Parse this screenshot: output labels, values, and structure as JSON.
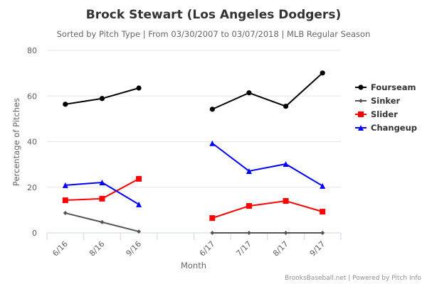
{
  "chart_data": {
    "type": "line",
    "title": "Brock Stewart (Los Angeles Dodgers)",
    "subtitle": "Sorted by Pitch Type | From 03/30/2007 to 03/07/2018 | MLB Regular Season",
    "xlabel": "Month",
    "ylabel": "Percentage of Pitches",
    "categories": [
      "6/16",
      "8/16",
      "9/16",
      "",
      "6/17",
      "7/17",
      "8/17",
      "9/17"
    ],
    "ylim": [
      0,
      80
    ],
    "yticks": [
      0,
      20,
      40,
      60,
      80
    ],
    "grid": true,
    "legend_position": "right",
    "series": [
      {
        "name": "Fourseam",
        "color": "#000000",
        "marker": "circle",
        "values": [
          56.4,
          58.9,
          63.5,
          null,
          54.2,
          61.4,
          55.5,
          70.1
        ]
      },
      {
        "name": "Sinker",
        "color": "#555555",
        "marker": "diamond",
        "values": [
          8.7,
          4.7,
          0.6,
          null,
          0.0,
          0.0,
          0.0,
          0.0
        ]
      },
      {
        "name": "Slider",
        "color": "#ff0000",
        "marker": "square",
        "values": [
          14.3,
          15.0,
          23.7,
          null,
          6.5,
          11.8,
          14.0,
          9.3
        ]
      },
      {
        "name": "Changeup",
        "color": "#0000ff",
        "marker": "triangle",
        "values": [
          20.9,
          22.1,
          12.5,
          null,
          39.3,
          27.1,
          30.2,
          20.6
        ]
      }
    ],
    "credits": "BrooksBaseball.net | Powered by Pitch Info"
  }
}
